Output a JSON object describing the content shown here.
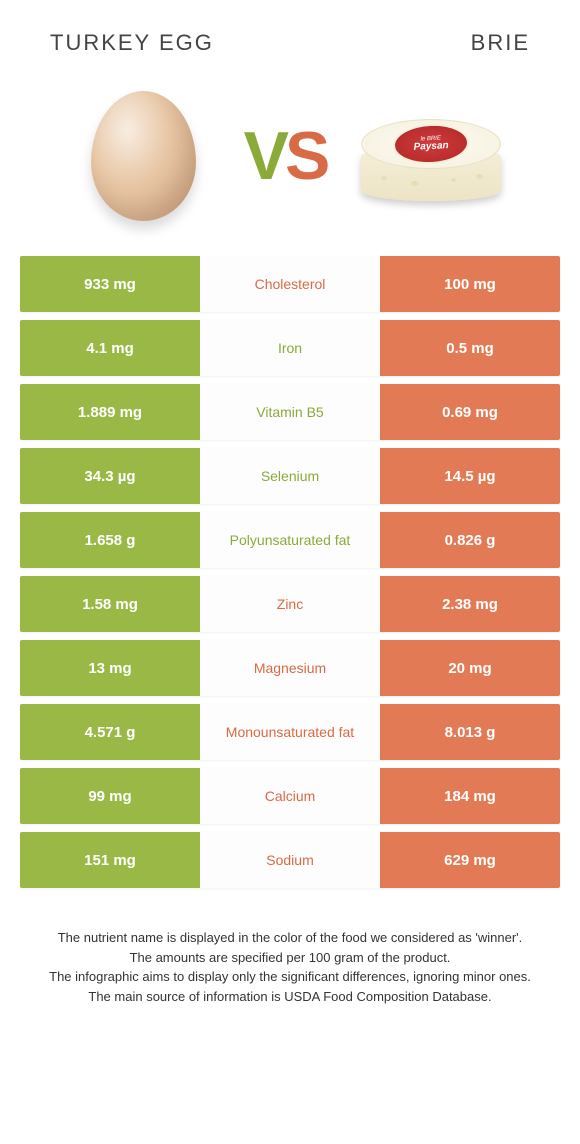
{
  "header": {
    "left_title": "TURKEY EGG",
    "right_title": "BRIE"
  },
  "hero": {
    "vs_left_letter": "V",
    "vs_right_letter": "S",
    "brie_label_line1": "le BRIE",
    "brie_label_line2": "Paysan"
  },
  "colors": {
    "left_bg": "#9ab845",
    "right_bg": "#e27a56",
    "mid_bg": "#fdfdfd",
    "win_left_text": "#8aab3a",
    "win_right_text": "#d96a46",
    "body_bg": "#ffffff"
  },
  "rows": [
    {
      "left": "933 mg",
      "label": "Cholesterol",
      "right": "100 mg",
      "winner": "right"
    },
    {
      "left": "4.1 mg",
      "label": "Iron",
      "right": "0.5 mg",
      "winner": "left"
    },
    {
      "left": "1.889 mg",
      "label": "Vitamin B5",
      "right": "0.69 mg",
      "winner": "left"
    },
    {
      "left": "34.3 µg",
      "label": "Selenium",
      "right": "14.5 µg",
      "winner": "left"
    },
    {
      "left": "1.658 g",
      "label": "Polyunsaturated fat",
      "right": "0.826 g",
      "winner": "left"
    },
    {
      "left": "1.58 mg",
      "label": "Zinc",
      "right": "2.38 mg",
      "winner": "right"
    },
    {
      "left": "13 mg",
      "label": "Magnesium",
      "right": "20 mg",
      "winner": "right"
    },
    {
      "left": "4.571 g",
      "label": "Monounsaturated fat",
      "right": "8.013 g",
      "winner": "right"
    },
    {
      "left": "99 mg",
      "label": "Calcium",
      "right": "184 mg",
      "winner": "right"
    },
    {
      "left": "151 mg",
      "label": "Sodium",
      "right": "629 mg",
      "winner": "right"
    }
  ],
  "footer": {
    "line1": "The nutrient name is displayed in the color of the food we considered as 'winner'.",
    "line2": "The amounts are specified per 100 gram of the product.",
    "line3": "The infographic aims to display only the significant differences, ignoring minor ones.",
    "line4": "The main source of information is USDA Food Composition Database."
  }
}
